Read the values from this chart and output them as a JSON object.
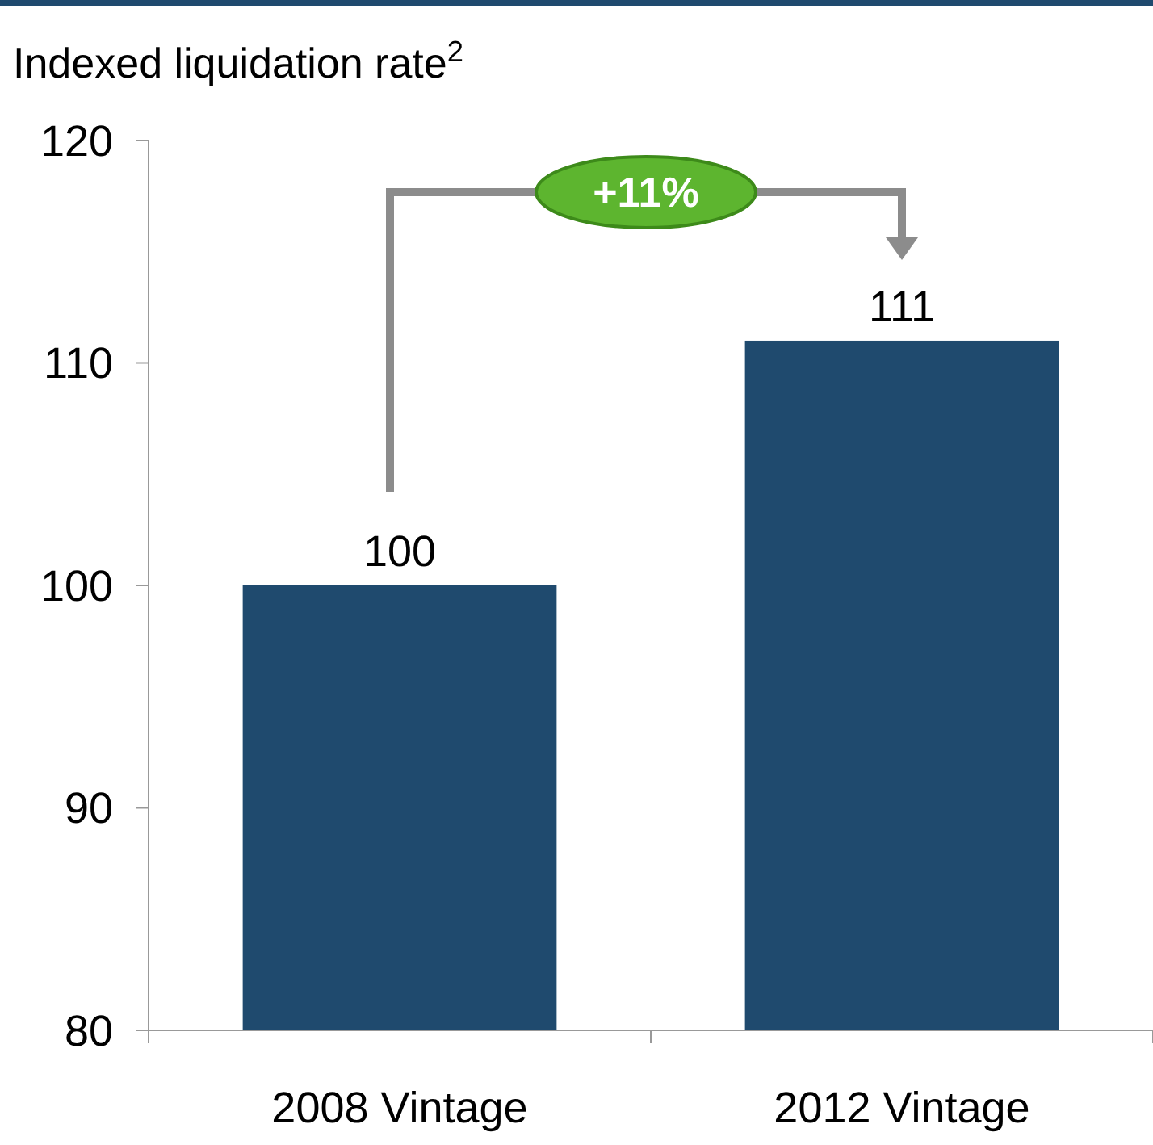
{
  "chart_data": {
    "type": "bar",
    "ylabel": "Indexed liquidation rate$^{2}$",
    "categories": [
      "2008 Vintage",
      "2012 Vintage"
    ],
    "values": [
      100,
      111
    ],
    "color": "#1f4a6e",
    "ylim": [
      80,
      120
    ],
    "yticks": [
      80,
      90,
      100,
      110,
      120
    ],
    "data_labels": true,
    "grid": false,
    "annotations": [
      "+11%"
    ]
  }
}
